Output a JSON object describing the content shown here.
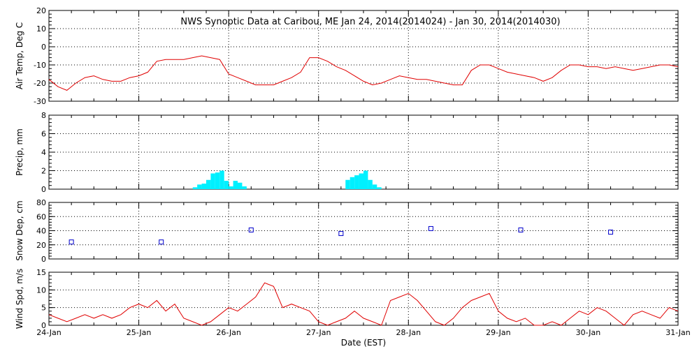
{
  "title": "NWS Synoptic Data at Caribou, ME   Jan 24, 2014(2014024) - Jan 30, 2014(2014030)",
  "x_label": "Date (EST)",
  "x_ticks": [
    "24-Jan",
    "25-Jan",
    "26-Jan",
    "27-Jan",
    "28-Jan",
    "29-Jan",
    "30-Jan",
    "31-Jan"
  ],
  "chart_data": [
    {
      "type": "line",
      "name": "air-temp",
      "ylabel": "Air Temp, Deg C",
      "ylim": [
        -30,
        20
      ],
      "yticks": [
        20,
        10,
        0,
        -10,
        -20,
        -30
      ],
      "color": "#e00000",
      "x": [
        0,
        0.1,
        0.2,
        0.3,
        0.4,
        0.5,
        0.6,
        0.7,
        0.8,
        0.9,
        1.0,
        1.1,
        1.2,
        1.3,
        1.4,
        1.5,
        1.6,
        1.7,
        1.8,
        1.9,
        2.0,
        2.1,
        2.2,
        2.3,
        2.4,
        2.5,
        2.6,
        2.7,
        2.8,
        2.9,
        3.0,
        3.1,
        3.2,
        3.3,
        3.4,
        3.5,
        3.6,
        3.7,
        3.8,
        3.9,
        4.0,
        4.1,
        4.2,
        4.3,
        4.4,
        4.5,
        4.6,
        4.7,
        4.8,
        4.9,
        5.0,
        5.1,
        5.2,
        5.3,
        5.4,
        5.5,
        5.6,
        5.7,
        5.8,
        5.9,
        6.0,
        6.1,
        6.2,
        6.3,
        6.4,
        6.5,
        6.6,
        6.7,
        6.8,
        6.9,
        7.0
      ],
      "values": [
        -18,
        -22,
        -24,
        -20,
        -17,
        -16,
        -18,
        -19,
        -19,
        -17,
        -16,
        -14,
        -8,
        -7,
        -7,
        -7,
        -6,
        -5,
        -6,
        -7,
        -15,
        -17,
        -19,
        -21,
        -21,
        -21,
        -19,
        -17,
        -14,
        -6,
        -6,
        -8,
        -11,
        -13,
        -16,
        -19,
        -21,
        -20,
        -18,
        -16,
        -17,
        -18,
        -18,
        -19,
        -20,
        -21,
        -21,
        -13,
        -10,
        -10,
        -12,
        -14,
        -15,
        -16,
        -17,
        -19,
        -17,
        -13,
        -10,
        -10,
        -11,
        -11,
        -12,
        -11,
        -12,
        -13,
        -12,
        -11,
        -10,
        -10,
        -11
      ],
      "grid": true
    },
    {
      "type": "bar",
      "name": "precip",
      "ylabel": "Precip, mm",
      "ylim": [
        0,
        8
      ],
      "yticks": [
        8,
        6,
        4,
        2,
        0
      ],
      "color": "#00f0ff",
      "x": [
        1.6,
        1.65,
        1.7,
        1.75,
        1.8,
        1.85,
        1.9,
        1.95,
        2.0,
        2.05,
        2.1,
        2.15,
        3.3,
        3.35,
        3.4,
        3.45,
        3.5,
        3.55,
        3.6,
        3.65
      ],
      "values": [
        0.2,
        0.5,
        0.6,
        1.0,
        1.7,
        1.8,
        2.0,
        0.9,
        0.3,
        0.9,
        0.7,
        0.3,
        1.0,
        1.3,
        1.5,
        1.7,
        2.0,
        1.0,
        0.5,
        0.2
      ],
      "grid": true
    },
    {
      "type": "scatter",
      "name": "snow-depth",
      "ylabel": "Snow Dep, cm",
      "ylim": [
        0,
        80
      ],
      "yticks": [
        80,
        60,
        40,
        20,
        0
      ],
      "color": "#0000cc",
      "x": [
        0.25,
        1.25,
        2.25,
        3.25,
        4.25,
        5.25,
        6.25
      ],
      "values": [
        24,
        24,
        41,
        36,
        43,
        41,
        38
      ],
      "grid": true
    },
    {
      "type": "line",
      "name": "wind-speed",
      "ylabel": "Wind Spd, m/s",
      "ylim": [
        0,
        15
      ],
      "yticks": [
        15,
        10,
        5,
        0
      ],
      "color": "#e00000",
      "x": [
        0,
        0.1,
        0.2,
        0.3,
        0.4,
        0.5,
        0.6,
        0.7,
        0.8,
        0.9,
        1.0,
        1.1,
        1.2,
        1.3,
        1.4,
        1.5,
        1.6,
        1.7,
        1.8,
        1.9,
        2.0,
        2.1,
        2.2,
        2.3,
        2.4,
        2.5,
        2.6,
        2.7,
        2.8,
        2.9,
        3.0,
        3.1,
        3.2,
        3.3,
        3.4,
        3.5,
        3.6,
        3.7,
        3.8,
        3.9,
        4.0,
        4.1,
        4.2,
        4.3,
        4.4,
        4.5,
        4.6,
        4.7,
        4.8,
        4.9,
        5.0,
        5.1,
        5.2,
        5.3,
        5.4,
        5.5,
        5.6,
        5.7,
        5.8,
        5.9,
        6.0,
        6.1,
        6.2,
        6.3,
        6.4,
        6.5,
        6.6,
        6.7,
        6.8,
        6.9,
        7.0
      ],
      "values": [
        3,
        2,
        1,
        2,
        3,
        2,
        3,
        2,
        3,
        5,
        6,
        5,
        7,
        4,
        6,
        2,
        1,
        0,
        1,
        3,
        5,
        4,
        6,
        8,
        12,
        11,
        5,
        6,
        5,
        4,
        1,
        0,
        1,
        2,
        4,
        2,
        1,
        0,
        7,
        8,
        9,
        7,
        4,
        1,
        0,
        2,
        5,
        7,
        8,
        9,
        4,
        2,
        1,
        2,
        0,
        0,
        1,
        0,
        2,
        4,
        3,
        5,
        4,
        2,
        0,
        3,
        4,
        3,
        2,
        5,
        4
      ],
      "grid": true
    }
  ]
}
